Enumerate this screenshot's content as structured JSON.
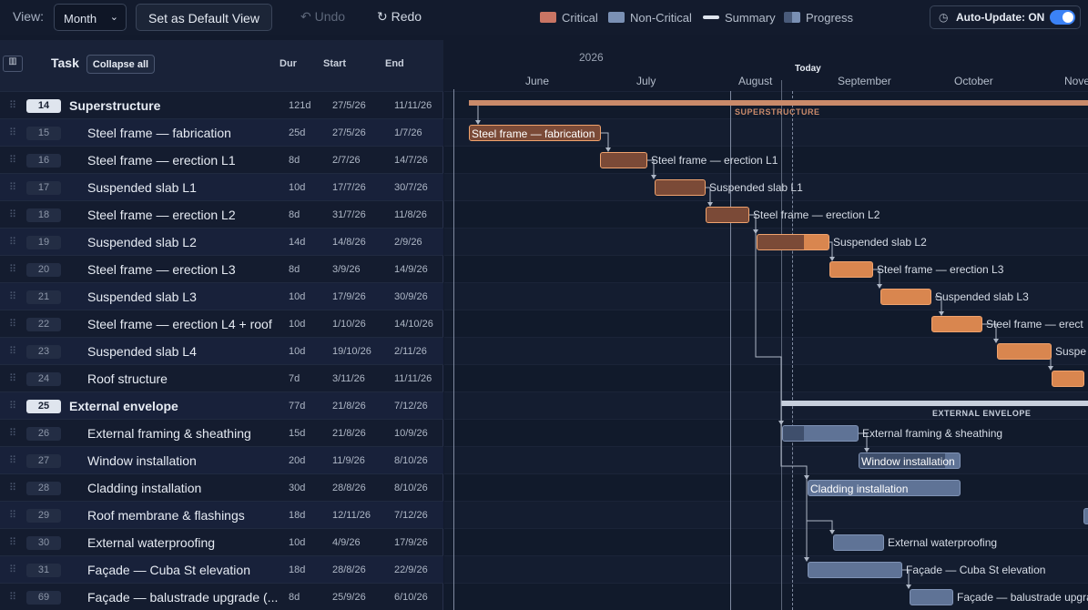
{
  "toolbar": {
    "view_label": "View:",
    "view_value": "Month",
    "default_view_label": "Set as Default View",
    "undo_label": "Undo",
    "redo_label": "Redo",
    "auto_update_label": "Auto-Update: ON"
  },
  "legend": {
    "critical": "Critical",
    "non_critical": "Non-Critical",
    "summary": "Summary",
    "progress": "Progress",
    "colors": {
      "critical": "#c97564",
      "non_critical": "#7a90b4",
      "summary": "#dfe5ee",
      "progress": "#7a90b4"
    }
  },
  "table": {
    "task_header": "Task",
    "collapse_label": "Collapse all",
    "dur_header": "Dur",
    "start_header": "Start",
    "end_header": "End",
    "rows": [
      {
        "id": "14",
        "name": "Superstructure",
        "dur": "121d",
        "start": "27/5/26",
        "end": "11/11/26",
        "summary": true
      },
      {
        "id": "15",
        "name": "Steel frame — fabrication",
        "dur": "25d",
        "start": "27/5/26",
        "end": "1/7/26"
      },
      {
        "id": "16",
        "name": "Steel frame — erection L1",
        "dur": "8d",
        "start": "2/7/26",
        "end": "14/7/26"
      },
      {
        "id": "17",
        "name": "Suspended slab L1",
        "dur": "10d",
        "start": "17/7/26",
        "end": "30/7/26"
      },
      {
        "id": "18",
        "name": "Steel frame — erection L2",
        "dur": "8d",
        "start": "31/7/26",
        "end": "11/8/26"
      },
      {
        "id": "19",
        "name": "Suspended slab L2",
        "dur": "14d",
        "start": "14/8/26",
        "end": "2/9/26"
      },
      {
        "id": "20",
        "name": "Steel frame — erection L3",
        "dur": "8d",
        "start": "3/9/26",
        "end": "14/9/26"
      },
      {
        "id": "21",
        "name": "Suspended slab L3",
        "dur": "10d",
        "start": "17/9/26",
        "end": "30/9/26"
      },
      {
        "id": "22",
        "name": "Steel frame — erection L4 + roof",
        "dur": "10d",
        "start": "1/10/26",
        "end": "14/10/26"
      },
      {
        "id": "23",
        "name": "Suspended slab L4",
        "dur": "10d",
        "start": "19/10/26",
        "end": "2/11/26"
      },
      {
        "id": "24",
        "name": "Roof structure",
        "dur": "7d",
        "start": "3/11/26",
        "end": "11/11/26"
      },
      {
        "id": "25",
        "name": "External envelope",
        "dur": "77d",
        "start": "21/8/26",
        "end": "7/12/26",
        "summary": true
      },
      {
        "id": "26",
        "name": "External framing & sheathing",
        "dur": "15d",
        "start": "21/8/26",
        "end": "10/9/26"
      },
      {
        "id": "27",
        "name": "Window installation",
        "dur": "20d",
        "start": "11/9/26",
        "end": "8/10/26"
      },
      {
        "id": "28",
        "name": "Cladding installation",
        "dur": "30d",
        "start": "28/8/26",
        "end": "8/10/26"
      },
      {
        "id": "29",
        "name": "Roof membrane & flashings",
        "dur": "18d",
        "start": "12/11/26",
        "end": "7/12/26"
      },
      {
        "id": "30",
        "name": "External waterproofing",
        "dur": "10d",
        "start": "4/9/26",
        "end": "17/9/26"
      },
      {
        "id": "31",
        "name": "Façade — Cuba St elevation",
        "dur": "18d",
        "start": "28/8/26",
        "end": "22/9/26"
      },
      {
        "id": "69",
        "name": "Façade — balustrade upgrade (...",
        "dur": "8d",
        "start": "25/9/26",
        "end": "6/10/26"
      }
    ]
  },
  "timeline": {
    "year": "2026",
    "months": [
      "June",
      "July",
      "August",
      "September",
      "October",
      "Nover"
    ],
    "today_label": "Today",
    "summaries": [
      {
        "label": "SUPERSTRUCTURE",
        "color": "#c98a6a"
      },
      {
        "label": "EXTERNAL ENVELOPE",
        "color": "#c7cfdc"
      }
    ],
    "bars": [
      {
        "label": "Steel frame — fabrication",
        "critical": true,
        "progress": 1.0,
        "label_inside": true
      },
      {
        "label": "Steel frame — erection L1",
        "critical": true,
        "progress": 1.0
      },
      {
        "label": "Suspended slab L1",
        "critical": true,
        "progress": 1.0
      },
      {
        "label": "Steel frame — erection L2",
        "critical": true,
        "progress": 1.0
      },
      {
        "label": "Suspended slab L2",
        "critical": true,
        "progress": 0.65
      },
      {
        "label": "Steel frame — erection L3",
        "critical": true,
        "progress": 0
      },
      {
        "label": "Suspended slab L3",
        "critical": true,
        "progress": 0
      },
      {
        "label": "Steel frame — erect",
        "critical": true,
        "progress": 0
      },
      {
        "label": "Suspe",
        "critical": true,
        "progress": 0
      },
      {
        "label": "",
        "critical": true,
        "progress": 0
      },
      {
        "label": "External framing & sheathing",
        "critical": false,
        "progress": 0.28
      },
      {
        "label": "Window installation",
        "critical": false,
        "progress": 0.85,
        "label_inside": true
      },
      {
        "label": "Cladding installation",
        "critical": false,
        "progress": 0,
        "label_inside": true
      },
      {
        "label": "",
        "critical": false,
        "progress": 0
      },
      {
        "label": "External waterproofing",
        "critical": false,
        "progress": 0
      },
      {
        "label": "Façade — Cuba St elevation",
        "critical": false,
        "progress": 0
      },
      {
        "label": "Façade — balustrade upgrade (",
        "critical": false,
        "progress": 0
      }
    ]
  }
}
